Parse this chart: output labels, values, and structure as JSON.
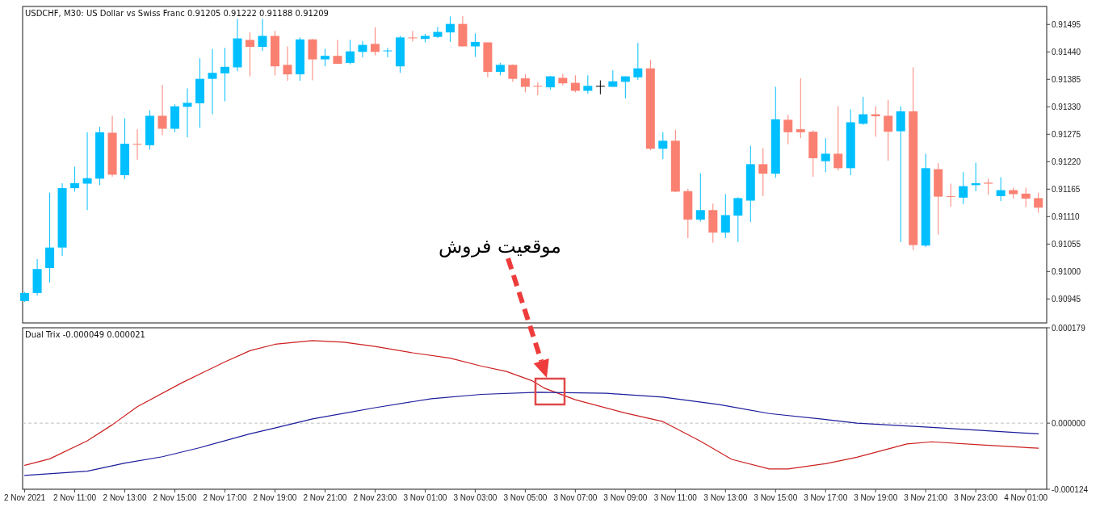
{
  "chart_data": [
    {
      "type": "candlestick",
      "title": "USDCHF, M30:  US Dollar vs Swiss Franc  0.91205 0.91222 0.91188 0.91209",
      "x": [
        "2021-11-02T09:00",
        "2021-11-02T09:30",
        "2021-11-02T10:00",
        "2021-11-02T10:30",
        "2021-11-02T11:00",
        "2021-11-02T11:30",
        "2021-11-02T12:00",
        "2021-11-02T12:30",
        "2021-11-02T13:00",
        "2021-11-02T13:30",
        "2021-11-02T14:00",
        "2021-11-02T14:30",
        "2021-11-02T15:00",
        "2021-11-02T15:30",
        "2021-11-02T16:00",
        "2021-11-02T16:30",
        "2021-11-02T17:00",
        "2021-11-02T17:30",
        "2021-11-02T18:00",
        "2021-11-02T18:30",
        "2021-11-02T19:00",
        "2021-11-02T19:30",
        "2021-11-02T20:00",
        "2021-11-02T20:30",
        "2021-11-02T21:00",
        "2021-11-02T21:30",
        "2021-11-02T22:00",
        "2021-11-02T22:30",
        "2021-11-02T23:00",
        "2021-11-02T23:30",
        "2021-11-03T00:00",
        "2021-11-03T00:30",
        "2021-11-03T01:00",
        "2021-11-03T01:30",
        "2021-11-03T02:00",
        "2021-11-03T02:30",
        "2021-11-03T03:00",
        "2021-11-03T03:30",
        "2021-11-03T04:00",
        "2021-11-03T04:30",
        "2021-11-03T05:00",
        "2021-11-03T05:30",
        "2021-11-03T06:00",
        "2021-11-03T06:30",
        "2021-11-03T07:00",
        "2021-11-03T07:30",
        "2021-11-03T08:00",
        "2021-11-03T08:30",
        "2021-11-03T09:00",
        "2021-11-03T09:30",
        "2021-11-03T10:00",
        "2021-11-03T10:30",
        "2021-11-03T11:00",
        "2021-11-03T11:30",
        "2021-11-03T12:00",
        "2021-11-03T12:30",
        "2021-11-03T13:00",
        "2021-11-03T13:30",
        "2021-11-03T14:00",
        "2021-11-03T14:30",
        "2021-11-03T15:00",
        "2021-11-03T15:30",
        "2021-11-03T16:00",
        "2021-11-03T16:30",
        "2021-11-03T17:00",
        "2021-11-03T17:30",
        "2021-11-03T18:00",
        "2021-11-03T18:30",
        "2021-11-03T19:00",
        "2021-11-03T19:30",
        "2021-11-03T20:00",
        "2021-11-03T20:30",
        "2021-11-03T21:00",
        "2021-11-03T21:30",
        "2021-11-03T22:00",
        "2021-11-03T22:30",
        "2021-11-03T23:00",
        "2021-11-03T23:30",
        "2021-11-04T00:00",
        "2021-11-04T00:30",
        "2021-11-04T01:00",
        "2021-11-04T01:30"
      ],
      "ohlc": [
        [
          0.90941,
          0.90959,
          0.90939,
          0.90957
        ],
        [
          0.90957,
          0.91025,
          0.90952,
          0.91005
        ],
        [
          0.91007,
          0.91158,
          0.90978,
          0.91048
        ],
        [
          0.91048,
          0.91177,
          0.91031,
          0.91167
        ],
        [
          0.91167,
          0.9121,
          0.9116,
          0.91177
        ],
        [
          0.91176,
          0.91279,
          0.91123,
          0.91187
        ],
        [
          0.91186,
          0.9129,
          0.91173,
          0.91279
        ],
        [
          0.91278,
          0.91312,
          0.9119,
          0.91194
        ],
        [
          0.91193,
          0.91307,
          0.91185,
          0.91256
        ],
        [
          0.91255,
          0.91285,
          0.91224,
          0.91254
        ],
        [
          0.91253,
          0.91323,
          0.91244,
          0.91312
        ],
        [
          0.91312,
          0.91374,
          0.91273,
          0.91286
        ],
        [
          0.91286,
          0.91335,
          0.91279,
          0.91331
        ],
        [
          0.9133,
          0.91367,
          0.91269,
          0.91338
        ],
        [
          0.91337,
          0.91427,
          0.91288,
          0.91386
        ],
        [
          0.91386,
          0.91446,
          0.91315,
          0.91398
        ],
        [
          0.91397,
          0.91448,
          0.91341,
          0.9141
        ],
        [
          0.91409,
          0.91506,
          0.91401,
          0.91467
        ],
        [
          0.91464,
          0.91479,
          0.91391,
          0.9145
        ],
        [
          0.9145,
          0.91506,
          0.91442,
          0.91472
        ],
        [
          0.91472,
          0.91482,
          0.91393,
          0.91411
        ],
        [
          0.91414,
          0.91451,
          0.91382,
          0.91395
        ],
        [
          0.91395,
          0.91469,
          0.91382,
          0.91465
        ],
        [
          0.91465,
          0.91466,
          0.91383,
          0.91425
        ],
        [
          0.91425,
          0.91446,
          0.91411,
          0.91432
        ],
        [
          0.91432,
          0.91464,
          0.91416,
          0.91416
        ],
        [
          0.91418,
          0.91464,
          0.91415,
          0.91441
        ],
        [
          0.9144,
          0.91462,
          0.91429,
          0.91454
        ],
        [
          0.91456,
          0.91489,
          0.91433,
          0.9144
        ],
        [
          0.91441,
          0.91448,
          0.91429,
          0.91442
        ],
        [
          0.91411,
          0.91472,
          0.91398,
          0.91469
        ],
        [
          0.91468,
          0.91482,
          0.91461,
          0.91467
        ],
        [
          0.91466,
          0.91476,
          0.91459,
          0.91472
        ],
        [
          0.9147,
          0.9149,
          0.91468,
          0.9148
        ],
        [
          0.91479,
          0.91511,
          0.9146,
          0.91496
        ],
        [
          0.91496,
          0.91512,
          0.91451,
          0.91451
        ],
        [
          0.91451,
          0.91477,
          0.9143,
          0.9146
        ],
        [
          0.91459,
          0.91459,
          0.91389,
          0.914
        ],
        [
          0.914,
          0.91418,
          0.91393,
          0.91414
        ],
        [
          0.91414,
          0.91415,
          0.9138,
          0.91386
        ],
        [
          0.91387,
          0.91395,
          0.91359,
          0.9137
        ],
        [
          0.91371,
          0.91379,
          0.91353,
          0.9137
        ],
        [
          0.91369,
          0.91392,
          0.91364,
          0.91391
        ],
        [
          0.91388,
          0.91396,
          0.91373,
          0.91377
        ],
        [
          0.91378,
          0.91393,
          0.91359,
          0.91362
        ],
        [
          0.91362,
          0.91393,
          0.91356,
          0.91372
        ],
        [
          0.91371,
          0.91383,
          0.91355,
          0.91371
        ],
        [
          0.9137,
          0.91403,
          0.9137,
          0.91381
        ],
        [
          0.9138,
          0.91391,
          0.91347,
          0.91391
        ],
        [
          0.91389,
          0.91458,
          0.91384,
          0.91407
        ],
        [
          0.91407,
          0.91424,
          0.91243,
          0.91246
        ],
        [
          0.91246,
          0.91279,
          0.91225,
          0.91262
        ],
        [
          0.91262,
          0.91284,
          0.91159,
          0.9116
        ],
        [
          0.91161,
          0.91166,
          0.91067,
          0.91104
        ],
        [
          0.91104,
          0.91197,
          0.911,
          0.91123
        ],
        [
          0.91123,
          0.91136,
          0.91058,
          0.91078
        ],
        [
          0.91078,
          0.91155,
          0.91067,
          0.91113
        ],
        [
          0.91112,
          0.91149,
          0.91059,
          0.91147
        ],
        [
          0.91142,
          0.91252,
          0.91099,
          0.91215
        ],
        [
          0.91215,
          0.91247,
          0.91151,
          0.91196
        ],
        [
          0.91196,
          0.9137,
          0.91188,
          0.91305
        ],
        [
          0.91304,
          0.91314,
          0.91255,
          0.91279
        ],
        [
          0.91285,
          0.91387,
          0.91267,
          0.91279
        ],
        [
          0.9128,
          0.91283,
          0.9119,
          0.91227
        ],
        [
          0.91221,
          0.91267,
          0.91199,
          0.91236
        ],
        [
          0.91236,
          0.91331,
          0.91202,
          0.91207
        ],
        [
          0.91207,
          0.91325,
          0.91193,
          0.91299
        ],
        [
          0.91296,
          0.9135,
          0.91294,
          0.91315
        ],
        [
          0.91315,
          0.91331,
          0.9127,
          0.91311
        ],
        [
          0.91312,
          0.91344,
          0.91222,
          0.9128
        ],
        [
          0.91281,
          0.91331,
          0.91059,
          0.91321
        ],
        [
          0.91321,
          0.91409,
          0.91043,
          0.91053
        ],
        [
          0.91052,
          0.91236,
          0.91049,
          0.91207
        ],
        [
          0.91205,
          0.91217,
          0.91074,
          0.9115
        ],
        [
          0.9115,
          0.91176,
          0.9113,
          0.91149
        ],
        [
          0.91148,
          0.91199,
          0.91135,
          0.91171
        ],
        [
          0.91173,
          0.91218,
          0.91161,
          0.91177
        ],
        [
          0.91178,
          0.91186,
          0.91154,
          0.91176
        ],
        [
          0.91151,
          0.91189,
          0.91141,
          0.91163
        ],
        [
          0.91163,
          0.91168,
          0.91146,
          0.91155
        ],
        [
          0.91156,
          0.91168,
          0.91129,
          0.91146
        ],
        [
          0.91147,
          0.91158,
          0.91118,
          0.91128
        ]
      ],
      "colors": [
        "#00bfff",
        "#00bfff",
        "#00bfff",
        "#00bfff",
        "#00bfff",
        "#00bfff",
        "#00bfff",
        "#fa8072",
        "#00bfff",
        "#fa8072",
        "#00bfff",
        "#fa8072",
        "#00bfff",
        "#00bfff",
        "#00bfff",
        "#00bfff",
        "#00bfff",
        "#00bfff",
        "#fa8072",
        "#00bfff",
        "#fa8072",
        "#fa8072",
        "#00bfff",
        "#fa8072",
        "#00bfff",
        "#fa8072",
        "#00bfff",
        "#00bfff",
        "#fa8072",
        "#00bfff",
        "#00bfff",
        "#fa8072",
        "#00bfff",
        "#00bfff",
        "#00bfff",
        "#fa8072",
        "#00bfff",
        "#fa8072",
        "#00bfff",
        "#fa8072",
        "#fa8072",
        "#fa8072",
        "#00bfff",
        "#fa8072",
        "#fa8072",
        "#00bfff",
        "#000000",
        "#00bfff",
        "#00bfff",
        "#00bfff",
        "#fa8072",
        "#00bfff",
        "#fa8072",
        "#fa8072",
        "#00bfff",
        "#fa8072",
        "#00bfff",
        "#00bfff",
        "#00bfff",
        "#fa8072",
        "#00bfff",
        "#fa8072",
        "#fa8072",
        "#fa8072",
        "#00bfff",
        "#fa8072",
        "#00bfff",
        "#00bfff",
        "#fa8072",
        "#fa8072",
        "#00bfff",
        "#fa8072",
        "#00bfff",
        "#fa8072",
        "#fa8072",
        "#00bfff",
        "#00bfff",
        "#fa8072",
        "#00bfff",
        "#fa8072",
        "#fa8072",
        "#fa8072"
      ],
      "xlim": [
        "2021-11-02T08:55",
        "2021-11-04T01:50"
      ],
      "ylim": [
        0.90897,
        0.91531
      ],
      "yticks": [
        0.91495,
        {
          "value": 0.9144,
          "label": "0.91440"
        },
        0.91385,
        {
          "value": 0.9133,
          "label": "0.91330"
        },
        0.91275,
        {
          "value": 0.9122,
          "label": "0.91220"
        },
        0.91165,
        {
          "value": 0.9111,
          "label": "0.91110"
        },
        0.91055,
        {
          "value": 0.91,
          "label": "0.91000"
        },
        0.90945
      ],
      "tick_labels": "y",
      "grid": false
    },
    {
      "type": "line",
      "title": "Dual Trix -0.000049 0.000021",
      "series": [
        {
          "color": "#cc1f1f",
          "x": [
            "2021-11-02T09:00",
            "2021-11-02T10:00",
            "2021-11-02T11:30",
            "2021-11-02T12:30",
            "2021-11-02T13:30",
            "2021-11-02T15:15",
            "2021-11-02T17:00",
            "2021-11-02T18:00",
            "2021-11-02T19:00",
            "2021-11-02T20:30",
            "2021-11-02T21:45",
            "2021-11-02T23:00",
            "2021-11-03T00:30",
            "2021-11-03T02:00",
            "2021-11-03T03:15",
            "2021-11-03T04:15",
            "2021-11-03T05:15",
            "2021-11-03T05:45",
            "2021-11-03T07:00",
            "2021-11-03T09:00",
            "2021-11-03T10:30",
            "2021-11-03T12:00",
            "2021-11-03T13:15",
            "2021-11-03T14:45",
            "2021-11-03T15:30",
            "2021-11-03T17:00",
            "2021-11-03T18:15",
            "2021-11-03T20:15",
            "2021-11-03T21:15",
            "2021-11-03T23:15",
            "2021-11-04T01:30"
          ],
          "values": [
            -7.9e-05,
            -6.7e-05,
            -3.3e-05,
            -3e-06,
            3.1e-05,
            7.5e-05,
            0.000115,
            0.000136,
            0.000148,
            0.000155,
            0.000152,
            0.000144,
            0.000132,
            0.000122,
            0.000107,
            9.7e-05,
            8e-05,
            6.6e-05,
            4.4e-05,
            1.9e-05,
            3e-06,
            -3.4e-05,
            -6.8e-05,
            -8.6e-05,
            -8.6e-05,
            -7.6e-05,
            -6.4e-05,
            -3.9e-05,
            -3.5e-05,
            -4.1e-05,
            -4.7e-05
          ]
        },
        {
          "color": "#1c1c9c",
          "x": [
            "2021-11-02T09:00",
            "2021-11-02T11:30",
            "2021-11-02T13:00",
            "2021-11-02T14:30",
            "2021-11-02T16:00",
            "2021-11-02T18:00",
            "2021-11-02T19:00",
            "2021-11-02T20:30",
            "2021-11-02T23:00",
            "2021-11-03T01:15",
            "2021-11-03T03:15",
            "2021-11-03T05:30",
            "2021-11-03T08:15",
            "2021-11-03T10:30",
            "2021-11-03T12:45",
            "2021-11-03T14:45",
            "2021-11-03T17:00",
            "2021-11-03T18:15",
            "2021-11-03T21:15",
            "2021-11-04T00:00",
            "2021-11-04T01:30"
          ],
          "values": [
            -9.8e-05,
            -9e-05,
            -7.5e-05,
            -6.3e-05,
            -4.6e-05,
            -2e-05,
            -9e-06,
            8e-06,
            2.9e-05,
            4.6e-05,
            5.4e-05,
            5.8e-05,
            5.6e-05,
            4.9e-05,
            3.5e-05,
            1.8e-05,
            7e-06,
            0,
            -8e-06,
            -1.6e-05,
            -2e-05
          ]
        }
      ],
      "xlim": [
        "2021-11-02T08:55",
        "2021-11-04T01:50"
      ],
      "xticks": [
        {
          "value": "2021-11-02T09:00",
          "label": "2 Nov 2021"
        },
        {
          "value": "2021-11-02T11:00",
          "label": "2 Nov 11:00"
        },
        {
          "value": "2021-11-02T13:00",
          "label": "2 Nov 13:00"
        },
        {
          "value": "2021-11-02T15:00",
          "label": "2 Nov 15:00"
        },
        {
          "value": "2021-11-02T17:00",
          "label": "2 Nov 17:00"
        },
        {
          "value": "2021-11-02T19:00",
          "label": "2 Nov 19:00"
        },
        {
          "value": "2021-11-02T21:00",
          "label": "2 Nov 21:00"
        },
        {
          "value": "2021-11-02T23:00",
          "label": "2 Nov 23:00"
        },
        {
          "value": "2021-11-03T01:00",
          "label": "3 Nov 01:00"
        },
        {
          "value": "2021-11-03T03:00",
          "label": "3 Nov 03:00"
        },
        {
          "value": "2021-11-03T05:00",
          "label": "3 Nov 05:00"
        },
        {
          "value": "2021-11-03T07:00",
          "label": "3 Nov 07:00"
        },
        {
          "value": "2021-11-03T09:00",
          "label": "3 Nov 09:00"
        },
        {
          "value": "2021-11-03T11:00",
          "label": "3 Nov 11:00"
        },
        {
          "value": "2021-11-03T13:00",
          "label": "3 Nov 13:00"
        },
        {
          "value": "2021-11-03T15:00",
          "label": "3 Nov 15:00"
        },
        {
          "value": "2021-11-03T17:00",
          "label": "3 Nov 17:00"
        },
        {
          "value": "2021-11-03T19:00",
          "label": "3 Nov 19:00"
        },
        {
          "value": "2021-11-03T21:00",
          "label": "3 Nov 21:00"
        },
        {
          "value": "2021-11-03T23:00",
          "label": "3 Nov 23:00"
        },
        {
          "value": "2021-11-04T01:00",
          "label": "4 Nov 01:00"
        }
      ],
      "ylim": [
        -0.000124,
        0.000179
      ],
      "yticks": [
        0.000179,
        {
          "value": 0,
          "label": "0.000000"
        },
        -0.000124
      ],
      "ref_lines": [
        {
          "axis": "y",
          "value": 0,
          "color": "#c0c0c0",
          "line_style": "dashed"
        }
      ],
      "annotations": [
        "موقعیت فروش"
      ],
      "grid": false
    }
  ]
}
